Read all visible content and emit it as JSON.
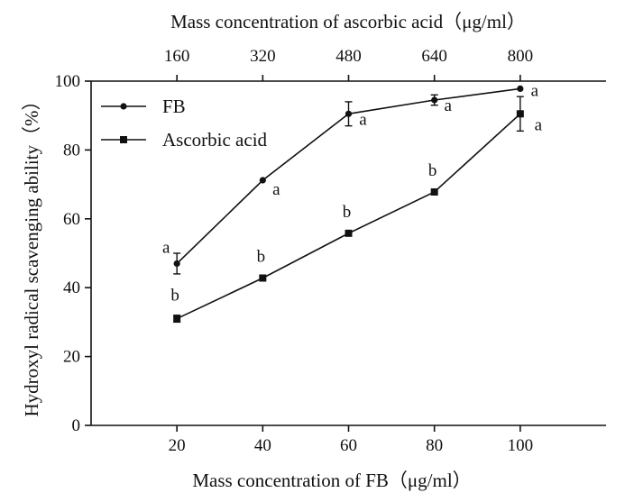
{
  "chart_data": {
    "type": "line",
    "xlabel": "Mass concentration of FB（μg/ml）",
    "x2label": "Mass concentration of ascorbic acid（μg/ml）",
    "ylabel": "Hydroxyl radical scavenging ability（%）",
    "x": [
      20,
      40,
      60,
      80,
      100
    ],
    "x2_ticks": [
      160,
      320,
      480,
      640,
      800
    ],
    "y_ticks": [
      0,
      20,
      40,
      60,
      80,
      100
    ],
    "xlim": [
      0,
      120
    ],
    "x2lim": [
      0,
      960
    ],
    "ylim": [
      0,
      100
    ],
    "grid": false,
    "legend_position": "top-left",
    "series": [
      {
        "name": "FB",
        "axis": "bottom",
        "marker": "circle",
        "x": [
          20,
          40,
          60,
          80,
          100
        ],
        "values": [
          47,
          71.2,
          90.5,
          94.5,
          97.8
        ],
        "errors": [
          3,
          0,
          3.5,
          1.5,
          0
        ],
        "labels": [
          "a",
          "a",
          "a",
          "a",
          "a"
        ]
      },
      {
        "name": "Ascorbic acid",
        "axis": "top",
        "marker": "square",
        "x": [
          160,
          320,
          480,
          640,
          800
        ],
        "values": [
          31,
          42.8,
          55.8,
          67.8,
          90.5
        ],
        "errors": [
          1,
          0,
          0,
          0,
          5
        ],
        "labels": [
          "b",
          "b",
          "b",
          "b",
          "a"
        ]
      }
    ]
  }
}
